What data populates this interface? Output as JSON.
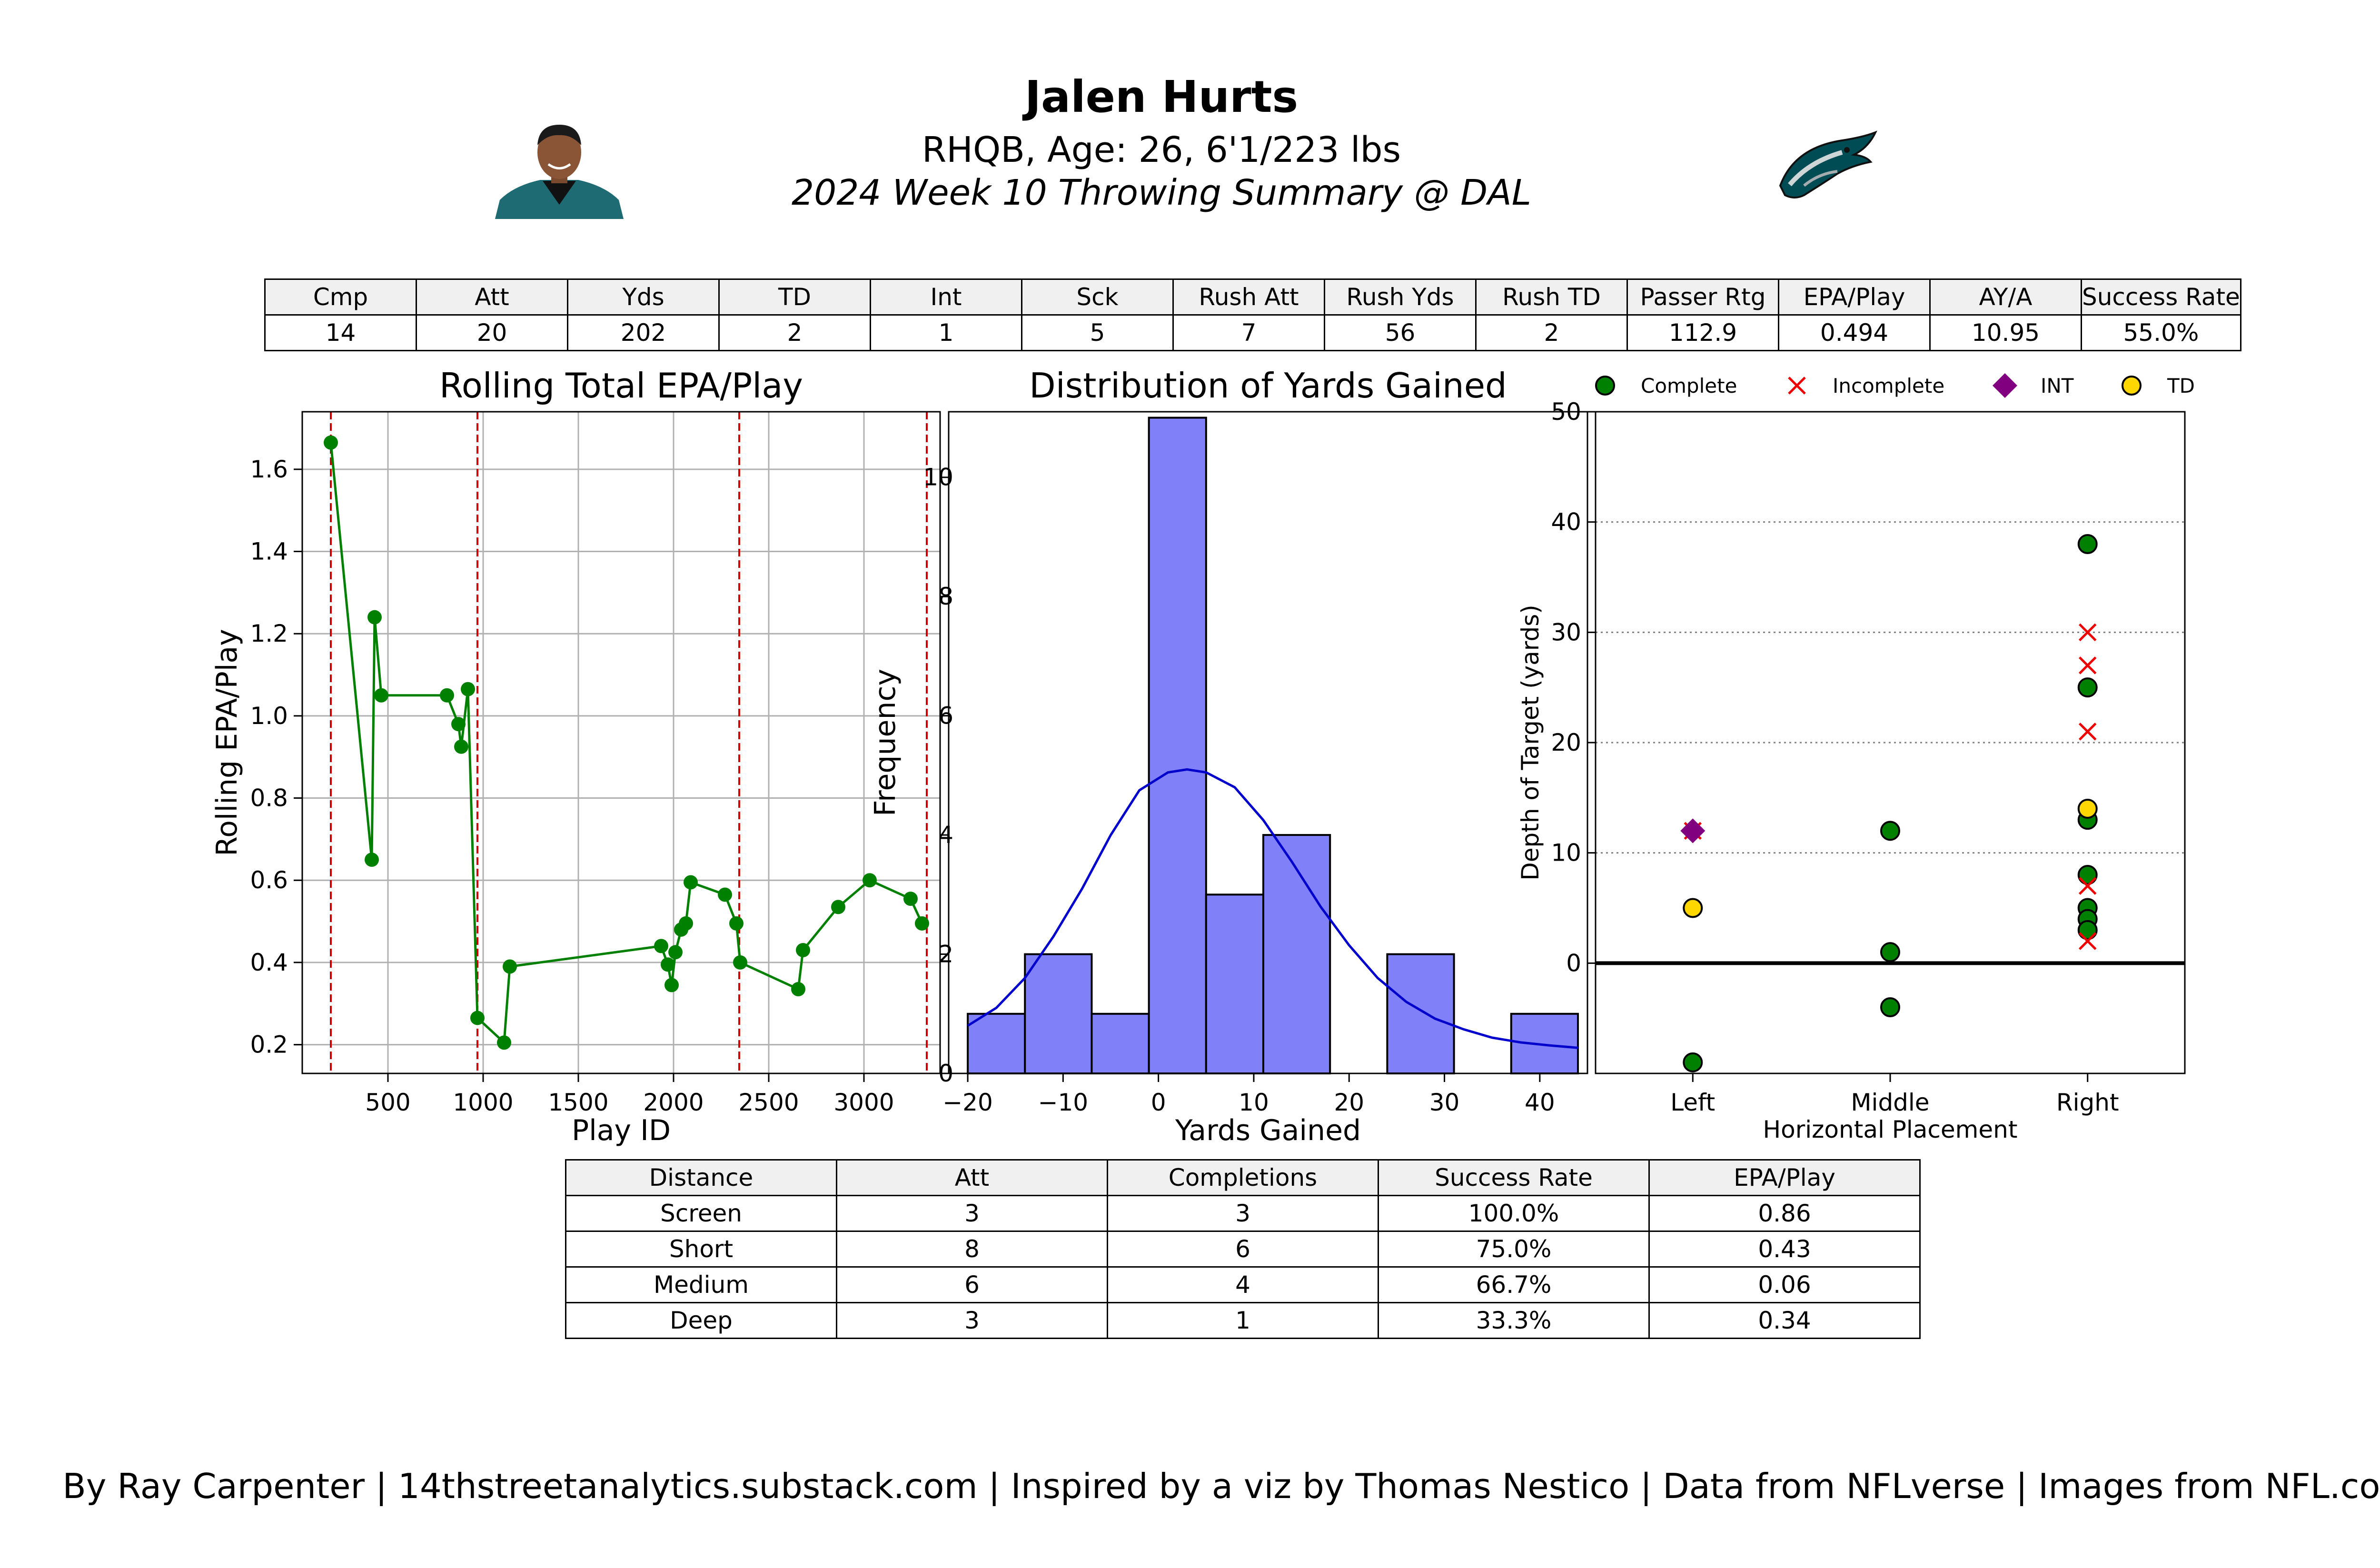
{
  "header": {
    "title": "Jalen Hurts",
    "subtitle": "RHQB, Age: 26, 6'1/223 lbs",
    "week": "2024 Week 10 Throwing Summary @ DAL",
    "player_photo": "player-headshot",
    "team_logo": "eagles-logo"
  },
  "stats_table": {
    "headers": [
      "Cmp",
      "Att",
      "Yds",
      "TD",
      "Int",
      "Sck",
      "Rush Att",
      "Rush Yds",
      "Rush TD",
      "Passer Rtg",
      "EPA/Play",
      "AY/A",
      "Success Rate"
    ],
    "values": [
      "14",
      "20",
      "202",
      "2",
      "1",
      "5",
      "7",
      "56",
      "2",
      "112.9",
      "0.494",
      "10.95",
      "55.0%"
    ]
  },
  "distance_table": {
    "headers": [
      "Distance",
      "Att",
      "Completions",
      "Success Rate",
      "EPA/Play"
    ],
    "rows": [
      [
        "Screen",
        "3",
        "3",
        "100.0%",
        "0.86"
      ],
      [
        "Short",
        "8",
        "6",
        "75.0%",
        "0.43"
      ],
      [
        "Medium",
        "6",
        "4",
        "66.7%",
        "0.06"
      ],
      [
        "Deep",
        "3",
        "1",
        "33.3%",
        "0.34"
      ]
    ]
  },
  "footer": "By Ray Carpenter | 14thstreetanalytics.substack.com | Inspired by a viz by Thomas Nestico | Data from NFLverse | Images from NFL.com",
  "chart_data": [
    {
      "type": "line",
      "title": "Rolling Total EPA/Play",
      "xlabel": "Play ID",
      "ylabel": "Rolling EPA/Play",
      "xlim": [
        50,
        3400
      ],
      "ylim": [
        0.13,
        1.74
      ],
      "xticks": [
        500,
        1000,
        1500,
        2000,
        2500,
        3000
      ],
      "yticks": [
        0.2,
        0.4,
        0.6,
        0.8,
        1.0,
        1.2,
        1.4,
        1.6
      ],
      "grid": true,
      "color": "#008000",
      "x": [
        200,
        415,
        430,
        465,
        810,
        870,
        885,
        920,
        970,
        1110,
        1140,
        1935,
        1970,
        1990,
        2010,
        2040,
        2065,
        2090,
        2270,
        2330,
        2350,
        2655,
        2680,
        2865,
        3030,
        3245,
        3305
      ],
      "y": [
        1.665,
        0.65,
        1.24,
        1.05,
        1.05,
        0.98,
        0.925,
        1.065,
        0.265,
        0.205,
        0.39,
        0.44,
        0.395,
        0.345,
        0.425,
        0.48,
        0.495,
        0.595,
        0.565,
        0.495,
        0.4,
        0.335,
        0.43,
        0.535,
        0.6,
        0.555,
        0.495
      ],
      "vlines": [
        200,
        970,
        2345,
        3330
      ],
      "vline_color": "#cc0000"
    },
    {
      "type": "bar",
      "title": "Distribution of Yards Gained",
      "xlabel": "Yards Gained",
      "ylabel": "Frequency",
      "xlim": [
        -22,
        45
      ],
      "ylim": [
        0,
        11.1
      ],
      "xticks": [
        -20,
        -10,
        0,
        10,
        20,
        30,
        40
      ],
      "yticks": [
        0,
        2,
        4,
        6,
        8,
        10
      ],
      "bar_color": "#8080f8",
      "bin_edges": [
        -20,
        -14,
        -7,
        -1,
        5,
        11,
        18,
        24,
        31,
        37,
        44
      ],
      "counts": [
        1,
        2,
        1,
        11,
        3,
        4,
        0,
        2,
        0,
        1
      ],
      "kde_color": "#0000cc",
      "kde_x": [
        -20,
        -17,
        -14,
        -11,
        -8,
        -5,
        -2,
        1,
        3,
        5,
        8,
        11,
        14,
        17,
        20,
        23,
        26,
        29,
        32,
        35,
        38,
        41,
        44
      ],
      "kde_y": [
        0.8,
        1.1,
        1.6,
        2.3,
        3.1,
        4.0,
        4.75,
        5.05,
        5.1,
        5.05,
        4.8,
        4.25,
        3.55,
        2.8,
        2.15,
        1.6,
        1.2,
        0.92,
        0.74,
        0.6,
        0.52,
        0.47,
        0.43
      ]
    },
    {
      "type": "scatter",
      "title": "",
      "xlabel": "Horizontal Placement",
      "ylabel": "Depth of Target (yards)",
      "categories": [
        "Left",
        "Middle",
        "Right"
      ],
      "ylim": [
        -10,
        50
      ],
      "yticks": [
        0,
        10,
        20,
        30,
        40,
        50
      ],
      "grid": "horizontal dotted",
      "legend_position": "top",
      "legend": [
        {
          "name": "Complete",
          "marker": "circle",
          "color": "#008000"
        },
        {
          "name": "Incomplete",
          "marker": "x",
          "color": "#ee0000"
        },
        {
          "name": "INT",
          "marker": "diamond",
          "color": "#800080"
        },
        {
          "name": "TD",
          "marker": "circle",
          "color": "#ffd700"
        }
      ],
      "series": [
        {
          "name": "Complete",
          "points": [
            [
              "Left",
              -9
            ],
            [
              "Middle",
              12
            ],
            [
              "Middle",
              1
            ],
            [
              "Middle",
              -4
            ],
            [
              "Right",
              38
            ],
            [
              "Right",
              25
            ],
            [
              "Right",
              13
            ],
            [
              "Right",
              8
            ],
            [
              "Right",
              5
            ],
            [
              "Right",
              4
            ],
            [
              "Right",
              3
            ]
          ]
        },
        {
          "name": "Incomplete",
          "points": [
            [
              "Left",
              12
            ],
            [
              "Right",
              30
            ],
            [
              "Right",
              27
            ],
            [
              "Right",
              21
            ],
            [
              "Right",
              7
            ],
            [
              "Right",
              2
            ]
          ]
        },
        {
          "name": "INT",
          "points": [
            [
              "Left",
              12
            ]
          ]
        },
        {
          "name": "TD",
          "points": [
            [
              "Left",
              5
            ],
            [
              "Right",
              14
            ]
          ]
        }
      ]
    }
  ]
}
